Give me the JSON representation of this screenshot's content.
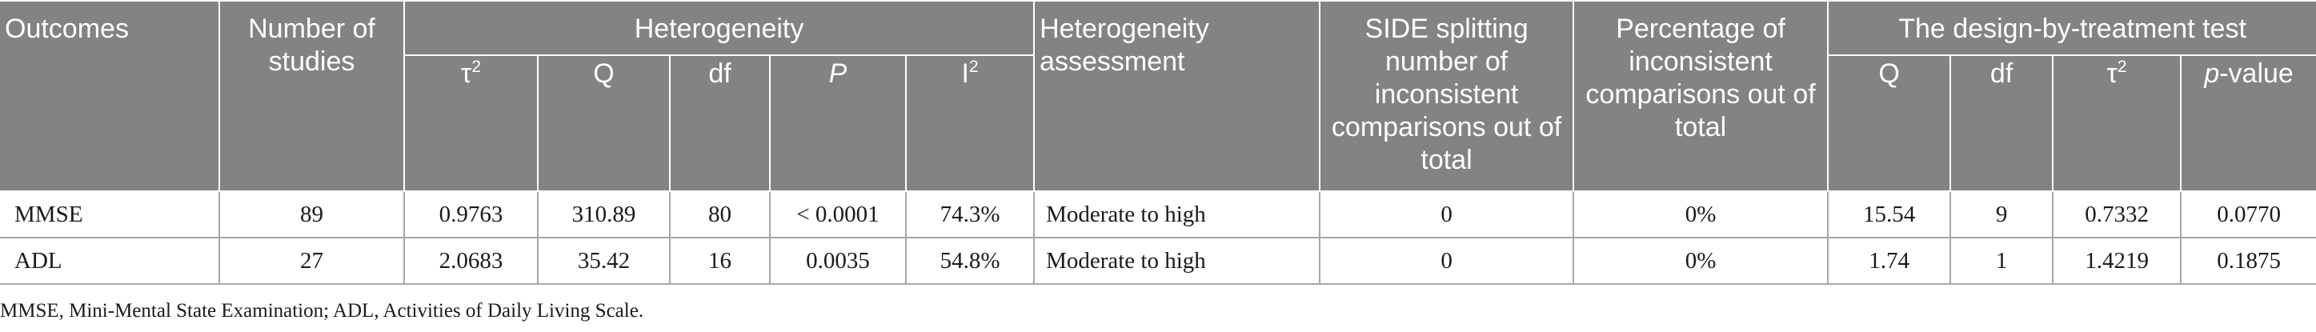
{
  "table": {
    "headers": {
      "outcomes": "Outcomes",
      "number_of_studies": "Number of studies",
      "heterogeneity": "Heterogeneity",
      "tau2": "τ",
      "tau2_sup": "2",
      "q": "Q",
      "df": "df",
      "p": "P",
      "i2": "I",
      "i2_sup": "2",
      "heterogeneity_assessment": "Heterogeneity assessment",
      "side_splitting": "SIDE splitting number of inconsistent comparisons out of total",
      "percentage_inconsistent": "Percentage of inconsistent comparisons out of total",
      "design_by_treatment": "The design-by-treatment test",
      "dbt_q": "Q",
      "dbt_df": "df",
      "dbt_tau2": "τ",
      "dbt_tau2_sup": "2",
      "dbt_p_italic": "p",
      "dbt_p_rest": "-value"
    },
    "rows": [
      {
        "outcome": "MMSE",
        "studies": "89",
        "tau2": "0.9763",
        "q": "310.89",
        "df": "80",
        "p": "< 0.0001",
        "i2": "74.3%",
        "assessment": "Moderate to high",
        "side": "0",
        "percentage": "0%",
        "dbt_q": "15.54",
        "dbt_df": "9",
        "dbt_tau2": "0.7332",
        "dbt_p": "0.0770"
      },
      {
        "outcome": "ADL",
        "studies": "27",
        "tau2": "2.0683",
        "q": "35.42",
        "df": "16",
        "p": "0.0035",
        "i2": "54.8%",
        "assessment": "Moderate to high",
        "side": "0",
        "percentage": "0%",
        "dbt_q": "1.74",
        "dbt_df": "1",
        "dbt_tau2": "1.4219",
        "dbt_p": "0.1875"
      }
    ]
  },
  "footnote": "MMSE, Mini-Mental State Examination; ADL, Activities of Daily Living Scale."
}
